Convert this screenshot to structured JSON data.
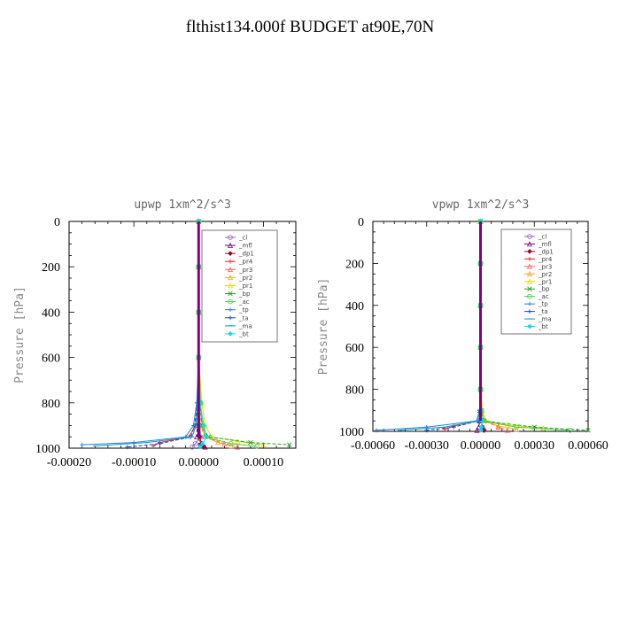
{
  "page_title": "flthist134.000f  BUDGET at90E,70N",
  "chart_data": [
    {
      "type": "line",
      "title": "upwp   1xm^2/s^3",
      "xlabel": "",
      "ylabel": "Pressure [hPa]",
      "xlim": [
        -0.0002,
        0.00015
      ],
      "ylim": [
        1000,
        0
      ],
      "xticks": [
        -0.0002,
        -0.0001,
        0.0,
        0.0001
      ],
      "xtick_labels": [
        "-0.00020",
        "-0.00010",
        "0.00000",
        "0.00010"
      ],
      "yticks": [
        0,
        200,
        400,
        600,
        800,
        1000
      ],
      "ytick_labels": [
        "0",
        "200",
        "400",
        "600",
        "800",
        "1000"
      ],
      "legend_position": "top-right",
      "series": [
        {
          "name": "_cl",
          "color": "#9060c0",
          "x": [
            0,
            0,
            0,
            0,
            1e-06,
            2e-06,
            3e-06,
            -5e-06,
            -1e-05
          ],
          "y": [
            0,
            200,
            400,
            600,
            800,
            900,
            950,
            980,
            995
          ]
        },
        {
          "name": "_mfl",
          "color": "#800080",
          "x": [
            0,
            0,
            0,
            0,
            0,
            -2e-06,
            -3e-06,
            5e-06,
            1e-05
          ],
          "y": [
            0,
            200,
            400,
            600,
            800,
            900,
            950,
            980,
            995
          ]
        },
        {
          "name": "_dp1",
          "color": "#a0002a",
          "x": [
            0,
            0,
            0,
            0,
            0,
            1e-06,
            2e-06,
            4e-06,
            8e-06
          ],
          "y": [
            0,
            200,
            400,
            600,
            800,
            900,
            950,
            980,
            995
          ]
        },
        {
          "name": "_pr4",
          "color": "#ff2020",
          "x": [
            0,
            0,
            0,
            0,
            0,
            -5e-06,
            -1.5e-05,
            -6e-05,
            -7e-05
          ],
          "y": [
            0,
            200,
            400,
            600,
            800,
            900,
            950,
            975,
            990
          ]
        },
        {
          "name": "_pr3",
          "color": "#ff6060",
          "x": [
            0,
            0,
            0,
            0,
            0,
            3e-06,
            1e-05,
            4e-05,
            6e-05
          ],
          "y": [
            0,
            200,
            400,
            600,
            800,
            900,
            950,
            980,
            995
          ]
        },
        {
          "name": "_pr2",
          "color": "#ffa020",
          "x": [
            0,
            0,
            0,
            0,
            2e-06,
            5e-06,
            1e-05,
            3e-05,
            5e-05
          ],
          "y": [
            0,
            200,
            400,
            600,
            800,
            900,
            950,
            975,
            990
          ]
        },
        {
          "name": "_pr1",
          "color": "#e8d800",
          "x": [
            0,
            0,
            0,
            0,
            5e-06,
            1e-05,
            2e-05,
            6e-05,
            0.0001
          ],
          "y": [
            0,
            200,
            400,
            600,
            800,
            900,
            950,
            970,
            985
          ]
        },
        {
          "name": "_bp",
          "color": "#20a020",
          "x": [
            0,
            0,
            0,
            0,
            2e-06,
            5e-06,
            1.5e-05,
            8e-05,
            0.00014
          ],
          "y": [
            0,
            200,
            400,
            600,
            800,
            900,
            950,
            975,
            985
          ]
        },
        {
          "name": "_ac",
          "color": "#40d040",
          "x": [
            0,
            0,
            0,
            0,
            3e-06,
            6e-06,
            1e-05,
            5e-05,
            9e-05
          ],
          "y": [
            0,
            200,
            400,
            600,
            800,
            900,
            950,
            980,
            992
          ]
        },
        {
          "name": "_tp",
          "color": "#2080e0",
          "x": [
            0,
            0,
            0,
            0,
            -3e-06,
            -8e-06,
            -2e-05,
            -0.0001,
            -0.00018
          ],
          "y": [
            0,
            200,
            400,
            600,
            800,
            900,
            950,
            975,
            985
          ]
        },
        {
          "name": "_ta",
          "color": "#2040c0",
          "x": [
            0,
            0,
            0,
            0,
            -2e-06,
            -6e-06,
            -1.2e-05,
            -6e-05,
            -0.00011
          ],
          "y": [
            0,
            200,
            400,
            600,
            800,
            900,
            950,
            980,
            995
          ]
        },
        {
          "name": "_ma",
          "color": "#00a0c0",
          "x": [
            0,
            0,
            0,
            0,
            -2e-06,
            -4e-06,
            -1e-05,
            -8e-05,
            -0.00016
          ],
          "y": [
            0,
            200,
            400,
            600,
            800,
            900,
            950,
            975,
            990
          ]
        },
        {
          "name": "_bt",
          "color": "#00e0f0",
          "x": [
            0,
            0,
            0,
            0,
            2e-06,
            8e-06,
            1.2e-05,
            6e-06,
            2e-06
          ],
          "y": [
            0,
            200,
            400,
            600,
            800,
            900,
            950,
            980,
            995
          ]
        }
      ]
    },
    {
      "type": "line",
      "title": "vpwp   1xm^2/s^3",
      "xlabel": "",
      "ylabel": "Pressure [hPa]",
      "xlim": [
        -0.0006,
        0.0006
      ],
      "ylim": [
        1000,
        0
      ],
      "xticks": [
        -0.0006,
        -0.0003,
        0.0,
        0.0003,
        0.0006
      ],
      "xtick_labels": [
        "-0.00060",
        "-0.00030",
        "0.00000",
        "0.00030",
        "0.00060"
      ],
      "yticks": [
        0,
        200,
        400,
        600,
        800,
        1000
      ],
      "ytick_labels": [
        "0",
        "200",
        "400",
        "600",
        "800",
        "1000"
      ],
      "legend_position": "top-right",
      "series": [
        {
          "name": "_cl",
          "color": "#9060c0",
          "x": [
            0,
            0,
            0,
            0,
            0,
            2e-06,
            4e-06,
            1e-05,
            2e-05
          ],
          "y": [
            0,
            200,
            400,
            600,
            800,
            900,
            950,
            980,
            995
          ]
        },
        {
          "name": "_mfl",
          "color": "#800080",
          "x": [
            0,
            0,
            0,
            0,
            0,
            -2e-06,
            -4e-06,
            -1e-05,
            -2e-05
          ],
          "y": [
            0,
            200,
            400,
            600,
            800,
            900,
            950,
            980,
            995
          ]
        },
        {
          "name": "_dp1",
          "color": "#a0002a",
          "x": [
            0,
            0,
            0,
            0,
            0,
            2e-06,
            5e-06,
            1e-05,
            2e-05
          ],
          "y": [
            0,
            200,
            400,
            600,
            800,
            900,
            950,
            980,
            995
          ]
        },
        {
          "name": "_pr4",
          "color": "#ff2020",
          "x": [
            0,
            0,
            0,
            0,
            0,
            -5e-06,
            -2e-05,
            -0.00015,
            -0.0002
          ],
          "y": [
            0,
            200,
            400,
            600,
            800,
            900,
            950,
            975,
            990
          ]
        },
        {
          "name": "_pr3",
          "color": "#ff6060",
          "x": [
            0,
            0,
            0,
            0,
            0,
            5e-06,
            2e-05,
            0.0001,
            0.00015
          ],
          "y": [
            0,
            200,
            400,
            600,
            800,
            900,
            950,
            980,
            995
          ]
        },
        {
          "name": "_pr2",
          "color": "#ffa020",
          "x": [
            0,
            0,
            0,
            0,
            0,
            5e-06,
            2e-05,
            0.0001,
            0.0002
          ],
          "y": [
            0,
            200,
            400,
            600,
            800,
            900,
            950,
            975,
            990
          ]
        },
        {
          "name": "_pr1",
          "color": "#e8d800",
          "x": [
            0,
            0,
            0,
            0,
            5e-06,
            1e-05,
            3e-05,
            0.00015,
            0.00035
          ],
          "y": [
            0,
            200,
            400,
            600,
            800,
            900,
            950,
            970,
            985
          ]
        },
        {
          "name": "_bp",
          "color": "#20a020",
          "x": [
            0,
            0,
            0,
            0,
            0,
            5e-06,
            2e-05,
            0.0003,
            0.0006
          ],
          "y": [
            0,
            200,
            400,
            600,
            800,
            900,
            950,
            980,
            995
          ]
        },
        {
          "name": "_ac",
          "color": "#40d040",
          "x": [
            0,
            0,
            0,
            0,
            0,
            4e-06,
            1e-05,
            0.0002,
            0.0005
          ],
          "y": [
            0,
            200,
            400,
            600,
            800,
            900,
            950,
            980,
            995
          ]
        },
        {
          "name": "_tp",
          "color": "#2080e0",
          "x": [
            0,
            0,
            0,
            0,
            0,
            -5e-06,
            -2e-05,
            -0.0003,
            -0.00058
          ],
          "y": [
            0,
            200,
            400,
            600,
            800,
            900,
            950,
            980,
            995
          ]
        },
        {
          "name": "_ta",
          "color": "#2040c0",
          "x": [
            0,
            0,
            0,
            0,
            0,
            -4e-06,
            -1e-05,
            -0.00015,
            -0.0003
          ],
          "y": [
            0,
            200,
            400,
            600,
            800,
            900,
            950,
            980,
            995
          ]
        },
        {
          "name": "_ma",
          "color": "#00a0c0",
          "x": [
            0,
            0,
            0,
            0,
            0,
            -3e-06,
            -1e-05,
            -0.0002,
            -0.00045
          ],
          "y": [
            0,
            200,
            400,
            600,
            800,
            900,
            950,
            980,
            995
          ]
        },
        {
          "name": "_bt",
          "color": "#00e0f0",
          "x": [
            0,
            0,
            0,
            0,
            0,
            3e-06,
            1e-05,
            5e-06,
            3e-06
          ],
          "y": [
            0,
            200,
            400,
            600,
            800,
            900,
            950,
            980,
            995
          ]
        }
      ]
    }
  ]
}
